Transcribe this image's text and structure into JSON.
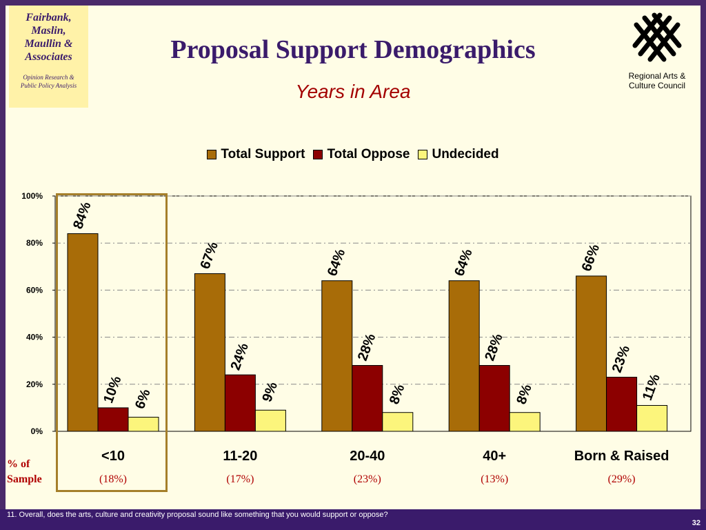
{
  "logo": {
    "name_lines": [
      "Fairbank,",
      "Maslin,",
      "Maullin &",
      "Associates"
    ],
    "tagline_lines": [
      "Opinion Research &",
      "Public Policy Analysis"
    ]
  },
  "title": "Proposal Support Demographics",
  "subtitle": "Years in Area",
  "council": {
    "name_lines": [
      "Regional Arts &",
      "Culture Council"
    ],
    "icon": "woven-grid-logo-icon"
  },
  "sample_label": {
    "line1": "% of",
    "line2": "Sample"
  },
  "question": "11. Overall, does the arts, culture and creativity proposal sound like something that you would support or oppose?",
  "page_number": "32",
  "chart_data": {
    "type": "bar",
    "title": "Years in Area",
    "categories": [
      "<10",
      "11-20",
      "20-40",
      "40+",
      "Born & Raised"
    ],
    "sample_shares": [
      "(18%)",
      "(17%)",
      "(23%)",
      "(13%)",
      "(29%)"
    ],
    "series": [
      {
        "name": "Total Support",
        "values": [
          84,
          67,
          64,
          64,
          66
        ],
        "labels": [
          "84%",
          "67%",
          "64%",
          "64%",
          "66%"
        ],
        "color": "#a86c08"
      },
      {
        "name": "Total Oppose",
        "values": [
          10,
          24,
          28,
          28,
          23
        ],
        "labels": [
          "10%",
          "24%",
          "28%",
          "28%",
          "23%"
        ],
        "color": "#8c0000"
      },
      {
        "name": "Undecided",
        "values": [
          6,
          9,
          8,
          8,
          11
        ],
        "labels": [
          "6%",
          "9%",
          "8%",
          "8%",
          "11%"
        ],
        "color": "#fcf57c"
      }
    ],
    "yticks": [
      "0%",
      "20%",
      "40%",
      "60%",
      "80%",
      "100%"
    ],
    "ylim": [
      0,
      100
    ],
    "legend": "top",
    "grid": true,
    "highlighted_category": "<10"
  }
}
